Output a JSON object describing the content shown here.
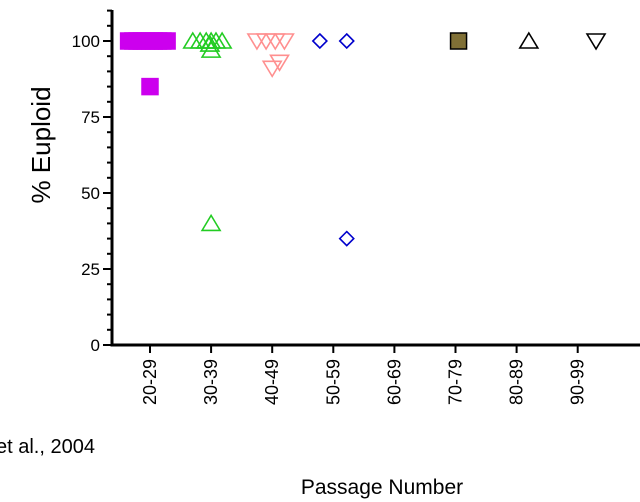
{
  "chart_data": {
    "type": "scatter",
    "title": "",
    "xlabel": "Passage Number",
    "ylabel": "% Euploid",
    "categories": [
      "20-29",
      "30-39",
      "40-49",
      "50-59",
      "60-69",
      "70-79",
      "80-89",
      "90-99"
    ],
    "ylim": [
      0,
      110
    ],
    "yticks": [
      0,
      25,
      50,
      75,
      100
    ],
    "grid": false,
    "legend": "none",
    "series": [
      {
        "marker": "filled-square",
        "color": "#cc00ee",
        "points": [
          {
            "cat": "20-29",
            "offset": -0.35,
            "y": 100
          },
          {
            "cat": "20-29",
            "offset": -0.28,
            "y": 100
          },
          {
            "cat": "20-29",
            "offset": -0.21,
            "y": 100
          },
          {
            "cat": "20-29",
            "offset": -0.14,
            "y": 100
          },
          {
            "cat": "20-29",
            "offset": -0.07,
            "y": 100
          },
          {
            "cat": "20-29",
            "offset": 0.0,
            "y": 100
          },
          {
            "cat": "20-29",
            "offset": 0.07,
            "y": 100
          },
          {
            "cat": "20-29",
            "offset": 0.14,
            "y": 100
          },
          {
            "cat": "20-29",
            "offset": 0.21,
            "y": 100
          },
          {
            "cat": "20-29",
            "offset": 0.28,
            "y": 100
          },
          {
            "cat": "20-29",
            "offset": 0.0,
            "y": 85
          }
        ]
      },
      {
        "marker": "open-triangle-up",
        "color": "#22cc22",
        "points": [
          {
            "cat": "30-39",
            "offset": -0.3,
            "y": 100
          },
          {
            "cat": "30-39",
            "offset": -0.18,
            "y": 100
          },
          {
            "cat": "30-39",
            "offset": -0.08,
            "y": 100
          },
          {
            "cat": "30-39",
            "offset": 0.0,
            "y": 100
          },
          {
            "cat": "30-39",
            "offset": 0.08,
            "y": 100
          },
          {
            "cat": "30-39",
            "offset": 0.18,
            "y": 100
          },
          {
            "cat": "30-39",
            "offset": -0.02,
            "y": 99
          },
          {
            "cat": "30-39",
            "offset": 0.0,
            "y": 97
          },
          {
            "cat": "30-39",
            "offset": 0.0,
            "y": 40
          }
        ]
      },
      {
        "marker": "open-triangle-down",
        "color": "#ff8f8f",
        "points": [
          {
            "cat": "40-49",
            "offset": -0.25,
            "y": 100
          },
          {
            "cat": "40-49",
            "offset": -0.1,
            "y": 100
          },
          {
            "cat": "40-49",
            "offset": 0.05,
            "y": 100
          },
          {
            "cat": "40-49",
            "offset": 0.2,
            "y": 100
          },
          {
            "cat": "40-49",
            "offset": 0.0,
            "y": 91
          },
          {
            "cat": "40-49",
            "offset": 0.12,
            "y": 93
          }
        ]
      },
      {
        "marker": "open-diamond",
        "color": "#0000cc",
        "points": [
          {
            "cat": "50-59",
            "offset": -0.22,
            "y": 100
          },
          {
            "cat": "50-59",
            "offset": 0.22,
            "y": 100
          },
          {
            "cat": "50-59",
            "offset": 0.22,
            "y": 35
          }
        ]
      },
      {
        "marker": "filled-square",
        "color": "#807036",
        "points": [
          {
            "cat": "70-79",
            "offset": 0.05,
            "y": 100
          }
        ]
      },
      {
        "marker": "open-triangle-up",
        "color": "#000000",
        "points": [
          {
            "cat": "80-89",
            "offset": 0.2,
            "y": 100
          }
        ]
      },
      {
        "marker": "open-triangle-down",
        "color": "#000000",
        "points": [
          {
            "cat": "90-99",
            "offset": 0.3,
            "y": 100
          }
        ]
      }
    ]
  },
  "citation": "et al., 2004"
}
